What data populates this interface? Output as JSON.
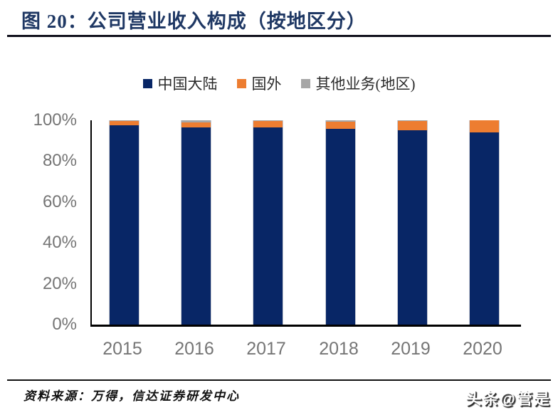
{
  "figure": {
    "title": "图 20：公司营业收入构成（按地区分）",
    "source_note": "资料来源：万得，信达证券研发中心",
    "watermark": "头条@管是"
  },
  "colors": {
    "title_navy": "#1f3864",
    "axis_label_gray": "#757575",
    "axis_line": "#000000",
    "mainland_navy": "#082666",
    "overseas_orange": "#ed7d31",
    "other_gray": "#a6a6a6"
  },
  "chart_data": {
    "type": "bar",
    "stacked": true,
    "title": "公司营业收入构成（按地区分）",
    "categories": [
      "2015",
      "2016",
      "2017",
      "2018",
      "2019",
      "2020"
    ],
    "series": [
      {
        "name": "中国大陆",
        "color": "#082666",
        "values": [
          97.5,
          96.5,
          96.5,
          95.8,
          95.2,
          94.2
        ]
      },
      {
        "name": "国外",
        "color": "#ed7d31",
        "values": [
          2.2,
          2.5,
          3.0,
          3.5,
          4.6,
          5.8
        ]
      },
      {
        "name": "其他业务(地区)",
        "color": "#a6a6a6",
        "values": [
          0.3,
          1.0,
          0.5,
          0.7,
          0.2,
          0.0
        ]
      }
    ],
    "xlabel": "",
    "ylabel": "",
    "ylim": [
      0,
      100
    ],
    "yticks": [
      "0%",
      "20%",
      "40%",
      "60%",
      "80%",
      "100%"
    ],
    "unit": "percent",
    "grid": false,
    "legend_position": "top-center"
  }
}
